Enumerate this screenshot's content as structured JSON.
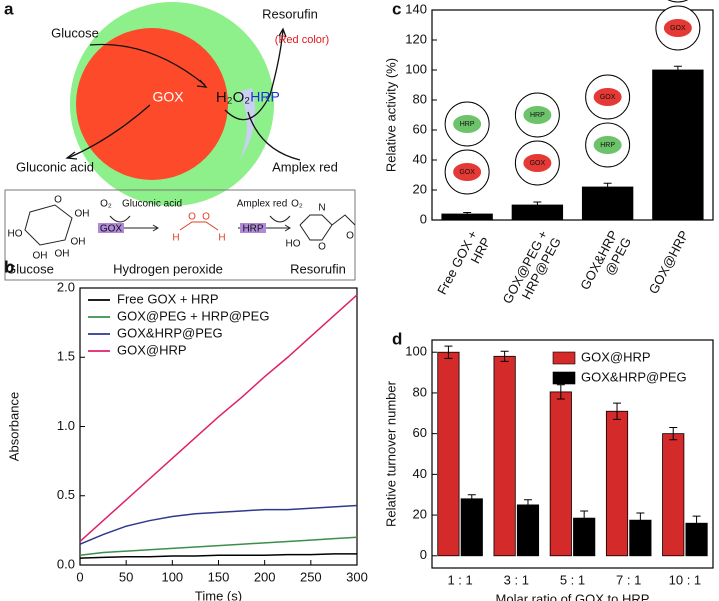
{
  "diagram": {
    "label": "a",
    "texts": {
      "glucose": "Glucose",
      "resorufin": "Resorufin",
      "red_color": "(Red color)",
      "gox": "GOX",
      "h2o2": "H₂O₂",
      "hrp": "HRP",
      "gluconic_acid": "Gluconic acid",
      "amplex_red": "Amplex red"
    },
    "scheme": {
      "o2_in": "O₂",
      "gluconic_acid": "Gluconic acid",
      "gox": "GOX",
      "amplex_red": "Amplex red",
      "o2_out": "O₂",
      "hrp": "HRP",
      "glucose": "Glucose",
      "hydrogen_peroxide": "Hydrogen peroxide",
      "resorufin": "Resorufin",
      "glucose_atoms": [
        "O",
        "OH",
        "HO",
        "OH",
        "OH",
        "OH"
      ],
      "peroxide_atoms": [
        "H",
        "O",
        "O",
        "H"
      ],
      "resorufin_atoms": [
        "N",
        "HO",
        "O",
        "O"
      ]
    }
  },
  "chart_data": [
    {
      "type": "line",
      "label": "b",
      "xlabel": "Time (s)",
      "ylabel": "Absorbance",
      "x": [
        0,
        25,
        50,
        75,
        100,
        125,
        150,
        175,
        200,
        225,
        250,
        275,
        300
      ],
      "series": [
        {
          "name": "Free GOX + HRP",
          "color": "#000000",
          "values": [
            0.05,
            0.055,
            0.06,
            0.06,
            0.065,
            0.065,
            0.07,
            0.07,
            0.07,
            0.075,
            0.075,
            0.08,
            0.08
          ]
        },
        {
          "name": "GOX@PEG + HRP@PEG",
          "color": "#3c8f4a",
          "values": [
            0.07,
            0.09,
            0.1,
            0.11,
            0.12,
            0.13,
            0.14,
            0.15,
            0.16,
            0.17,
            0.18,
            0.19,
            0.2
          ]
        },
        {
          "name": "GOX&HRP@PEG",
          "color": "#2e3a8c",
          "values": [
            0.15,
            0.22,
            0.28,
            0.32,
            0.35,
            0.37,
            0.38,
            0.39,
            0.4,
            0.4,
            0.41,
            0.42,
            0.43
          ]
        },
        {
          "name": "GOX@HRP",
          "color": "#e0206a",
          "values": [
            0.17,
            0.32,
            0.47,
            0.62,
            0.77,
            0.92,
            1.07,
            1.21,
            1.36,
            1.5,
            1.65,
            1.8,
            1.95
          ]
        }
      ],
      "xlim": [
        0,
        300
      ],
      "xticks": [
        0,
        50,
        100,
        150,
        200,
        250,
        300
      ],
      "ylim": [
        0,
        2.0
      ],
      "yticks": [
        {
          "value": 0,
          "label": "0.0"
        },
        0.5,
        {
          "value": 1,
          "label": "1.0"
        },
        1.5,
        {
          "value": 2,
          "label": "2.0"
        }
      ],
      "legend": "upper-left"
    },
    {
      "type": "bar",
      "label": "c",
      "ylabel": "Relative activity (%)",
      "categories": [
        "Free GOX +\nHRP",
        "GOX@PEG +\nHRP@PEG",
        "GOX&HRP\n@PEG",
        "GOX@HRP"
      ],
      "series": [
        {
          "color": "#000000",
          "values": [
            4,
            10,
            22,
            100
          ],
          "errors": [
            1,
            2,
            2.5,
            2.5
          ]
        }
      ],
      "icons": [
        [
          "GOX",
          "HRP"
        ],
        [
          "GOX",
          "HRP"
        ],
        [
          "HRP",
          "GOX"
        ],
        [
          "GOX",
          "HRP"
        ]
      ],
      "ylim": [
        0,
        140
      ],
      "yticks": [
        0,
        20,
        40,
        60,
        80,
        100,
        120,
        140
      ]
    },
    {
      "type": "bar",
      "label": "d",
      "xlabel": "Molar ratio of GOX to HRP",
      "ylabel": "Relative turnover number",
      "categories": [
        "1 : 1",
        "3 : 1",
        "5 : 1",
        "7 : 1",
        "10 : 1"
      ],
      "series": [
        {
          "name": "GOX@HRP",
          "color": "#d42a2a",
          "values": [
            100,
            98,
            80.5,
            71,
            60
          ],
          "errors": [
            3,
            2.5,
            3.5,
            4,
            3
          ]
        },
        {
          "name": "GOX&HRP@PEG",
          "color": "#000000",
          "values": [
            28,
            25,
            18.5,
            17.5,
            16
          ],
          "errors": [
            2,
            2.5,
            3.5,
            3.5,
            3.5
          ]
        }
      ],
      "ylim": [
        -6,
        106
      ],
      "yticks": [
        0,
        20,
        40,
        60,
        80,
        100
      ],
      "legend": "upper-right"
    }
  ]
}
